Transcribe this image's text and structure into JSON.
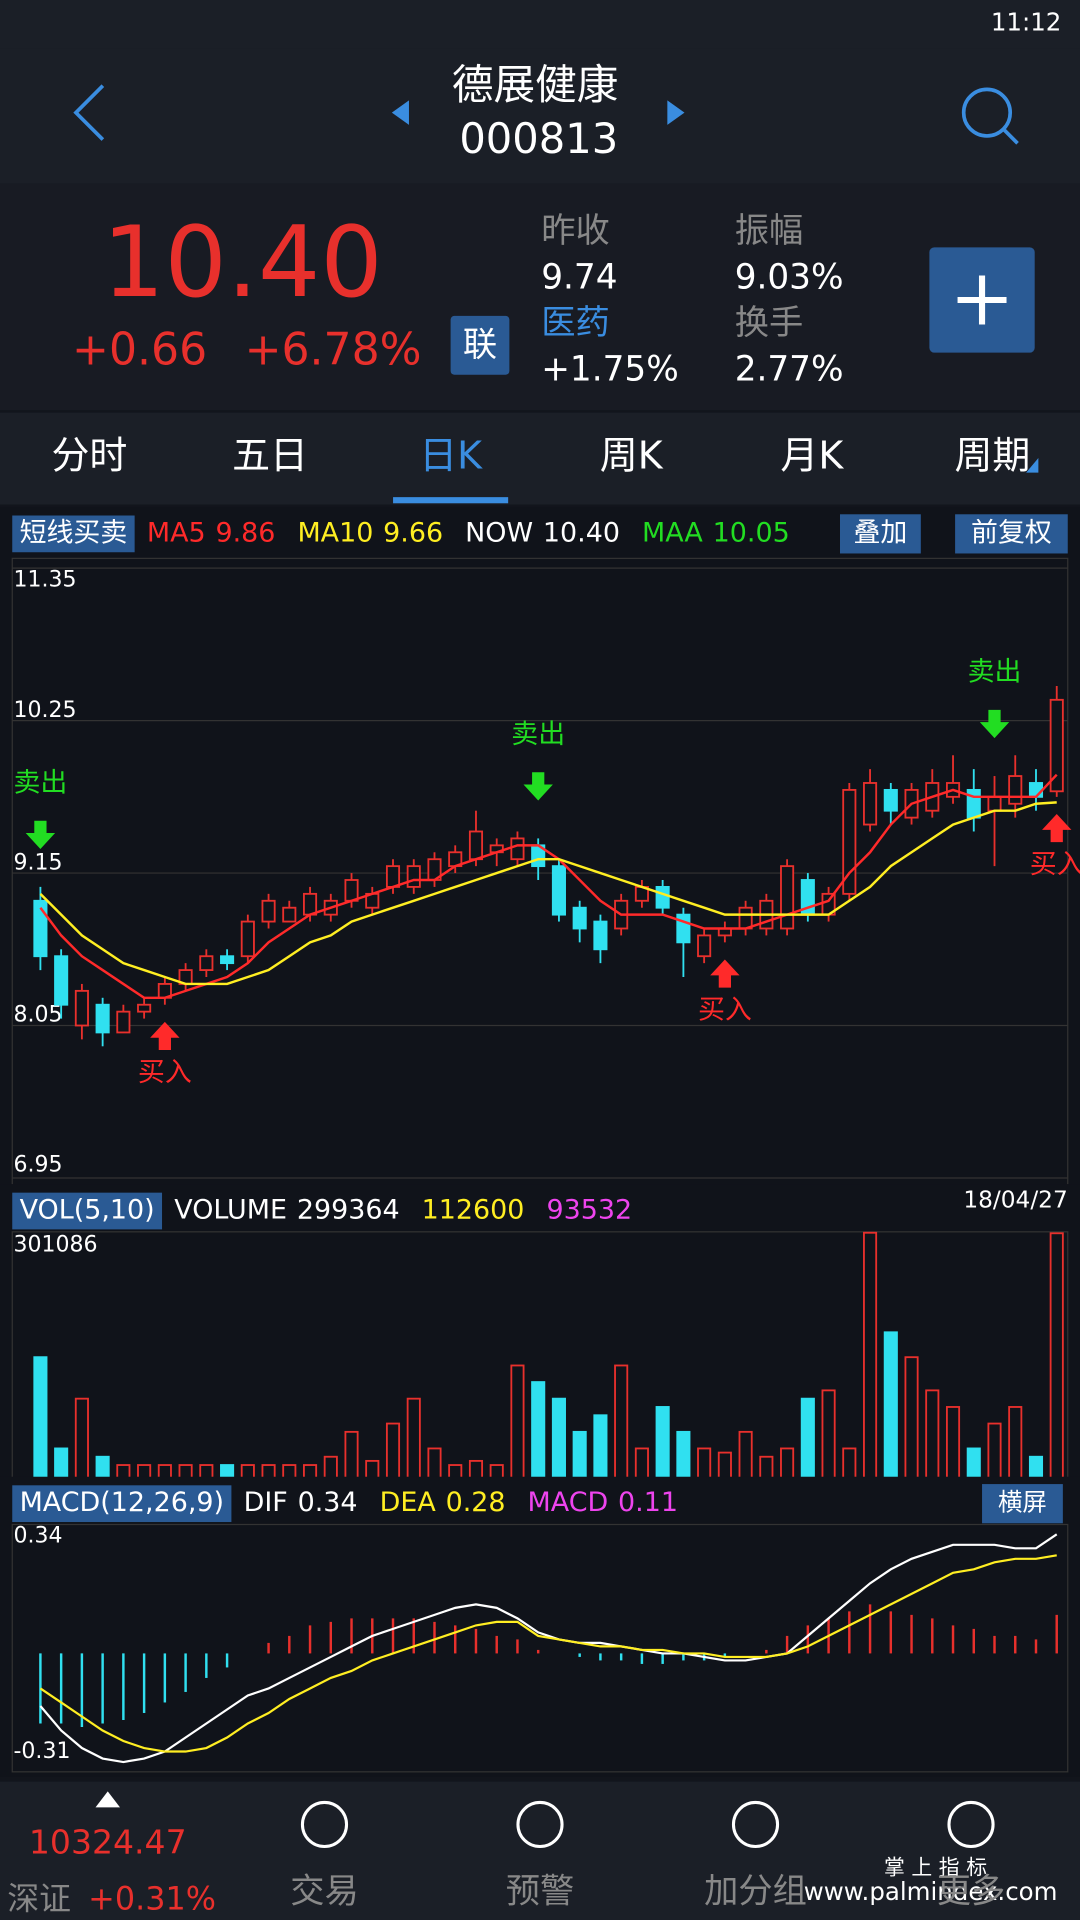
{
  "status": {
    "time": "11:12"
  },
  "header": {
    "name": "德展健康",
    "code": "000813"
  },
  "quote": {
    "price": "10.40",
    "change": "+0.66",
    "change_pct": "+6.78%",
    "badge": "联",
    "stats": [
      {
        "label": "昨收",
        "value": "9.74"
      },
      {
        "label": "医药",
        "value": "+1.75%"
      },
      {
        "label": "振幅",
        "value": "9.03%"
      },
      {
        "label": "换手",
        "value": "2.77%"
      }
    ]
  },
  "tabs": {
    "items": [
      "分时",
      "五日",
      "日K",
      "周K",
      "月K",
      "周期"
    ],
    "active": 2
  },
  "chart_data": [
    {
      "type": "candlestick",
      "indicator": "短线买卖",
      "buttons": [
        "叠加",
        "前复权"
      ],
      "legend": [
        {
          "name": "MA5",
          "value": "9.86",
          "color": "#ff2a2a"
        },
        {
          "name": "MA10",
          "value": "9.66",
          "color": "#ffee22"
        },
        {
          "name": "NOW",
          "value": "10.40",
          "color": "#ffffff"
        },
        {
          "name": "MAA",
          "value": "10.05",
          "color": "#22dd22"
        }
      ],
      "ylim": [
        6.95,
        11.35
      ],
      "yticks": [
        11.35,
        10.25,
        9.15,
        8.05,
        6.95
      ],
      "grid": true,
      "open": [
        8.95,
        8.55,
        8.05,
        8.2,
        8.0,
        8.15,
        8.25,
        8.35,
        8.45,
        8.55,
        8.55,
        8.8,
        8.8,
        8.85,
        8.85,
        8.95,
        8.9,
        9.05,
        9.05,
        9.1,
        9.2,
        9.25,
        9.3,
        9.25,
        9.35,
        9.2,
        8.9,
        8.8,
        8.75,
        8.95,
        9.05,
        8.85,
        8.55,
        8.7,
        8.75,
        8.75,
        8.75,
        9.1,
        8.85,
        9.0,
        9.5,
        9.75,
        9.55,
        9.6,
        9.7,
        9.75,
        9.6,
        9.65,
        9.8,
        9.74
      ],
      "high": [
        9.05,
        8.6,
        8.35,
        8.25,
        8.2,
        8.25,
        8.4,
        8.5,
        8.6,
        8.6,
        8.85,
        9.0,
        8.95,
        9.05,
        9.0,
        9.15,
        9.05,
        9.25,
        9.25,
        9.3,
        9.35,
        9.6,
        9.4,
        9.45,
        9.4,
        9.25,
        8.95,
        8.85,
        9.0,
        9.1,
        9.1,
        8.9,
        8.75,
        8.8,
        8.95,
        9.0,
        9.25,
        9.15,
        9.05,
        9.8,
        9.9,
        9.8,
        9.8,
        9.9,
        10.0,
        9.9,
        9.85,
        10.0,
        9.9,
        10.5
      ],
      "low": [
        8.45,
        8.1,
        7.95,
        7.9,
        8.0,
        8.1,
        8.2,
        8.3,
        8.4,
        8.45,
        8.5,
        8.75,
        8.8,
        8.8,
        8.8,
        8.9,
        8.85,
        9.0,
        9.0,
        9.05,
        9.15,
        9.2,
        9.2,
        9.2,
        9.1,
        8.8,
        8.65,
        8.5,
        8.7,
        8.9,
        8.85,
        8.4,
        8.5,
        8.65,
        8.7,
        8.7,
        8.7,
        8.8,
        8.8,
        8.95,
        9.45,
        9.5,
        9.5,
        9.55,
        9.65,
        9.45,
        9.2,
        9.55,
        9.6,
        9.7
      ],
      "close": [
        8.55,
        8.2,
        8.3,
        8.0,
        8.15,
        8.2,
        8.35,
        8.45,
        8.55,
        8.5,
        8.8,
        8.95,
        8.9,
        9.0,
        8.95,
        9.1,
        9.0,
        9.2,
        9.2,
        9.25,
        9.3,
        9.45,
        9.35,
        9.4,
        9.2,
        8.85,
        8.75,
        8.6,
        8.95,
        9.05,
        8.9,
        8.65,
        8.7,
        8.75,
        8.9,
        8.95,
        9.2,
        8.85,
        9.0,
        9.75,
        9.8,
        9.6,
        9.75,
        9.8,
        9.8,
        9.55,
        9.7,
        9.85,
        9.7,
        10.4
      ],
      "series": [
        {
          "name": "MA5",
          "color": "#ff2a2a",
          "values": [
            8.9,
            8.7,
            8.55,
            8.45,
            8.35,
            8.25,
            8.25,
            8.3,
            8.35,
            8.4,
            8.5,
            8.65,
            8.75,
            8.85,
            8.9,
            8.95,
            9.0,
            9.05,
            9.1,
            9.1,
            9.2,
            9.25,
            9.3,
            9.35,
            9.35,
            9.25,
            9.1,
            8.95,
            8.85,
            8.85,
            8.85,
            8.8,
            8.75,
            8.75,
            8.75,
            8.8,
            8.85,
            8.9,
            8.95,
            9.15,
            9.3,
            9.5,
            9.65,
            9.7,
            9.75,
            9.7,
            9.7,
            9.7,
            9.7,
            9.86
          ]
        },
        {
          "name": "MA10",
          "color": "#ffee22",
          "values": [
            9.0,
            8.85,
            8.7,
            8.6,
            8.5,
            8.45,
            8.4,
            8.35,
            8.35,
            8.35,
            8.4,
            8.45,
            8.55,
            8.65,
            8.7,
            8.8,
            8.85,
            8.9,
            8.95,
            9.0,
            9.05,
            9.1,
            9.15,
            9.2,
            9.25,
            9.25,
            9.2,
            9.15,
            9.1,
            9.05,
            9.0,
            8.95,
            8.9,
            8.85,
            8.85,
            8.85,
            8.85,
            8.85,
            8.85,
            8.95,
            9.05,
            9.2,
            9.3,
            9.4,
            9.5,
            9.55,
            9.6,
            9.6,
            9.65,
            9.66
          ]
        }
      ],
      "signals": [
        {
          "index": 0,
          "label": "卖出"
        },
        {
          "index": 6,
          "label": "买入"
        },
        {
          "index": 24,
          "label": "卖出"
        },
        {
          "index": 33,
          "label": "买入"
        },
        {
          "index": 46,
          "label": "卖出"
        },
        {
          "index": 49,
          "label": "买入"
        }
      ]
    },
    {
      "type": "volume",
      "indicator": "VOL(5,10)",
      "date": "18/04/27",
      "legend": [
        {
          "name": "VOLUME",
          "value": "299364",
          "color": "#ffffff"
        },
        {
          "value": "112600",
          "color": "#ffee22"
        },
        {
          "value": "93532",
          "color": "#ee44ee"
        }
      ],
      "ylim": [
        0,
        301086
      ],
      "yticks": [
        301086
      ],
      "values": [
        150000,
        40000,
        100000,
        30000,
        20000,
        20000,
        20000,
        20000,
        20000,
        20000,
        20000,
        20000,
        20000,
        20000,
        30000,
        60000,
        25000,
        70000,
        100000,
        40000,
        20000,
        25000,
        20000,
        140000,
        120000,
        100000,
        60000,
        80000,
        140000,
        40000,
        90000,
        60000,
        40000,
        35000,
        60000,
        30000,
        40000,
        100000,
        110000,
        40000,
        300000,
        180000,
        150000,
        110000,
        90000,
        40000,
        70000,
        90000,
        30000,
        299364
      ]
    },
    {
      "type": "macd",
      "indicator": "MACD(12,26,9)",
      "button": "横屏",
      "legend": [
        {
          "name": "DIF",
          "value": "0.34",
          "color": "#ffffff"
        },
        {
          "name": "DEA",
          "value": "0.28",
          "color": "#ffee22"
        },
        {
          "name": "MACD",
          "value": "0.11",
          "color": "#ee44ee"
        }
      ],
      "ylim": [
        -0.31,
        0.34
      ],
      "yticks": [
        0.34,
        -0.31
      ],
      "values": [
        -0.2,
        -0.2,
        -0.21,
        -0.2,
        -0.19,
        -0.17,
        -0.14,
        -0.11,
        -0.07,
        -0.04,
        0.0,
        0.03,
        0.05,
        0.08,
        0.09,
        0.1,
        0.1,
        0.1,
        0.1,
        0.09,
        0.08,
        0.07,
        0.05,
        0.04,
        0.01,
        0.0,
        -0.01,
        -0.02,
        -0.02,
        -0.03,
        -0.03,
        -0.02,
        -0.02,
        -0.01,
        0.0,
        0.01,
        0.05,
        0.08,
        0.1,
        0.12,
        0.14,
        0.12,
        0.11,
        0.1,
        0.08,
        0.07,
        0.05,
        0.05,
        0.04,
        0.11
      ],
      "series": [
        {
          "name": "DIF",
          "color": "#ffffff",
          "values": [
            -0.15,
            -0.22,
            -0.27,
            -0.3,
            -0.31,
            -0.3,
            -0.28,
            -0.24,
            -0.2,
            -0.16,
            -0.12,
            -0.1,
            -0.07,
            -0.04,
            -0.01,
            0.02,
            0.05,
            0.07,
            0.09,
            0.11,
            0.13,
            0.14,
            0.13,
            0.1,
            0.06,
            0.04,
            0.03,
            0.03,
            0.02,
            0.01,
            0.0,
            0.0,
            -0.01,
            -0.02,
            -0.02,
            -0.01,
            0.0,
            0.05,
            0.1,
            0.15,
            0.2,
            0.24,
            0.27,
            0.29,
            0.31,
            0.31,
            0.31,
            0.3,
            0.3,
            0.34
          ]
        },
        {
          "name": "DEA",
          "color": "#ffee22",
          "values": [
            -0.1,
            -0.14,
            -0.18,
            -0.22,
            -0.25,
            -0.27,
            -0.28,
            -0.28,
            -0.27,
            -0.24,
            -0.2,
            -0.17,
            -0.13,
            -0.1,
            -0.07,
            -0.05,
            -0.02,
            0.0,
            0.02,
            0.04,
            0.06,
            0.08,
            0.09,
            0.09,
            0.05,
            0.04,
            0.03,
            0.02,
            0.02,
            0.01,
            0.01,
            0.0,
            0.0,
            -0.01,
            -0.01,
            -0.01,
            0.0,
            0.02,
            0.05,
            0.08,
            0.11,
            0.14,
            0.17,
            0.2,
            0.23,
            0.24,
            0.26,
            0.27,
            0.27,
            0.28
          ]
        }
      ]
    }
  ],
  "bottom": {
    "index": {
      "name": "深证",
      "value": "10324.47",
      "change": "+0.31%"
    },
    "items": [
      "交易",
      "预警",
      "加分组",
      "更多"
    ],
    "watermark": {
      "title": "掌 上 指 标",
      "url": "www.palmindex.com"
    }
  }
}
